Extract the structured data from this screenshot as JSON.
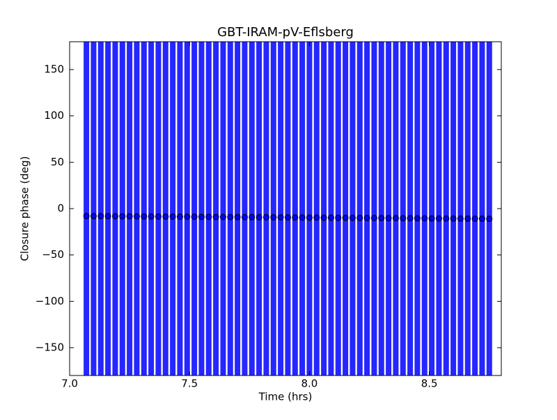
{
  "chart_data": {
    "type": "errorbar",
    "title": "GBT-IRAM-pV-Eflsberg",
    "xlabel": "Time (hrs)",
    "ylabel": "Closure phase (deg)",
    "x": [
      7.07,
      7.1,
      7.13,
      7.16,
      7.19,
      7.22,
      7.25,
      7.28,
      7.31,
      7.34,
      7.37,
      7.4,
      7.43,
      7.46,
      7.49,
      7.52,
      7.55,
      7.58,
      7.61,
      7.64,
      7.67,
      7.7,
      7.73,
      7.76,
      7.79,
      7.82,
      7.85,
      7.88,
      7.91,
      7.94,
      7.97,
      8.0,
      8.03,
      8.06,
      8.09,
      8.12,
      8.15,
      8.18,
      8.21,
      8.24,
      8.27,
      8.3,
      8.33,
      8.36,
      8.39,
      8.42,
      8.45,
      8.48,
      8.51,
      8.54,
      8.57,
      8.6,
      8.63,
      8.66,
      8.69,
      8.72,
      8.75
    ],
    "values": [
      -8.0,
      -8.1,
      -8.1,
      -8.2,
      -8.2,
      -8.3,
      -8.3,
      -8.4,
      -8.4,
      -8.5,
      -8.5,
      -8.6,
      -8.6,
      -8.7,
      -8.8,
      -8.8,
      -8.9,
      -8.9,
      -9.0,
      -9.0,
      -9.1,
      -9.1,
      -9.2,
      -9.2,
      -9.3,
      -9.3,
      -9.4,
      -9.4,
      -9.5,
      -9.6,
      -9.6,
      -9.7,
      -9.7,
      -9.8,
      -9.8,
      -9.9,
      -9.9,
      -10.0,
      -10.0,
      -10.1,
      -10.1,
      -10.2,
      -10.3,
      -10.3,
      -10.4,
      -10.4,
      -10.5,
      -10.5,
      -10.6,
      -10.6,
      -10.7,
      -10.7,
      -10.8,
      -10.8,
      -10.9,
      -10.9,
      -11.0
    ],
    "errors": [
      200,
      200,
      200,
      200,
      200,
      200,
      200,
      200,
      200,
      200,
      200,
      200,
      200,
      200,
      200,
      200,
      200,
      200,
      200,
      200,
      200,
      200,
      200,
      200,
      200,
      200,
      200,
      200,
      200,
      200,
      200,
      200,
      200,
      200,
      200,
      200,
      200,
      200,
      200,
      200,
      200,
      200,
      200,
      200,
      200,
      200,
      200,
      200,
      200,
      200,
      200,
      200,
      200,
      200,
      200,
      200,
      200
    ],
    "color": "#0000ff",
    "marker_edge": "#000000",
    "xlim": [
      7.0,
      8.8
    ],
    "xticks": [
      {
        "value": 7,
        "label": "7.0"
      },
      7.5,
      {
        "value": 8,
        "label": "8.0"
      },
      8.5
    ],
    "ylim": [
      -180,
      180
    ],
    "yticks": [
      {
        "value": -150,
        "label": "−150"
      },
      {
        "value": -100,
        "label": "−100"
      },
      {
        "value": -50,
        "label": "−50"
      },
      0,
      50,
      100,
      150
    ]
  }
}
